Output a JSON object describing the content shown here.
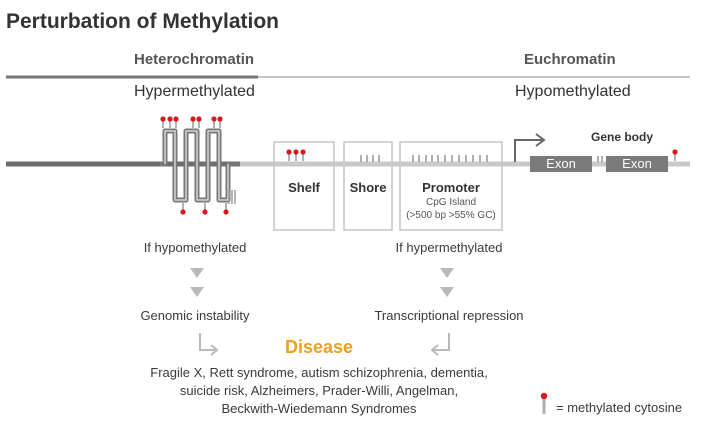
{
  "title": "Perturbation of Methylation",
  "regions": {
    "heterochromatin": "Heterochromatin",
    "euchromatin": "Euchromatin",
    "hyper": "Hypermethylated",
    "hypo": "Hypomethylated"
  },
  "boxes": {
    "shelf": "Shelf",
    "shore": "Shore",
    "promoter": "Promoter",
    "cpg": "CpG Island",
    "cpg_detail": "(>500 bp >55% GC)"
  },
  "gene": {
    "gene_body": "Gene body",
    "exon1": "Exon",
    "exon2": "Exon"
  },
  "flow": {
    "left_condition": "If hypomethylated",
    "left_effect": "Genomic instability",
    "right_condition": "If hypermethylated",
    "right_effect": "Transcriptional repression",
    "disease": "Disease",
    "disease_list": [
      "Fragile X, Rett syndrome, autism schizophrenia, dementia,",
      "suicide risk, Alzheimers, Prader-Willi, Angelman,",
      "Beckwith-Wiedemann Syndromes"
    ]
  },
  "legend": {
    "label": "= methylated cytosine"
  },
  "colors": {
    "dna": "#6d6d6d",
    "dna_light": "#c8c8c8",
    "methyl": "#d7191c",
    "disease": "#f0a020",
    "arrow": "#b9b9b9"
  }
}
